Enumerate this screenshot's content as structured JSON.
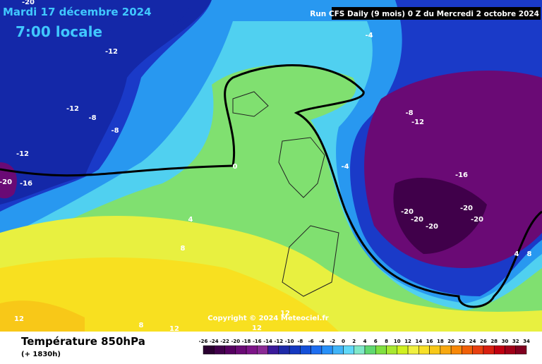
{
  "header": {
    "date": "Mardi 17 décembre 2024",
    "time": "7:00 locale",
    "run": "Run CFS Daily (9 mois) 0 Z du Mercredi 2 octobre 2024"
  },
  "map": {
    "contour_labels": [
      -20,
      -12,
      -12,
      -8,
      -8,
      -12,
      -20,
      -16,
      -4,
      -8,
      -12,
      0,
      -4,
      -16,
      -20,
      -20,
      -20,
      -20,
      -20,
      4,
      8,
      4,
      8,
      12,
      8,
      12,
      12,
      12
    ],
    "copyright": "Copyright © 2024 Meteociel.fr"
  },
  "footer": {
    "title": "Température 850hPa",
    "lead": "(+ 1830h)"
  },
  "scale": {
    "ticks": [
      -26,
      -24,
      -22,
      -20,
      -18,
      -16,
      -14,
      -12,
      -10,
      -8,
      -6,
      -4,
      -2,
      0,
      2,
      4,
      6,
      8,
      10,
      12,
      14,
      16,
      18,
      20,
      22,
      24,
      26,
      28,
      30,
      32,
      34
    ],
    "colors": [
      "#2a0030",
      "#40004a",
      "#550060",
      "#6a0a75",
      "#7d1488",
      "#8a2a95",
      "#3a1a9a",
      "#1e2aa8",
      "#1438c0",
      "#1450d8",
      "#1e6ef0",
      "#2890f8",
      "#40b4f8",
      "#60d8f8",
      "#80e8c8",
      "#60d870",
      "#80e040",
      "#a8e830",
      "#d0f020",
      "#f0f040",
      "#f8e028",
      "#f8c818",
      "#f8a810",
      "#f88808",
      "#f06008",
      "#e84010",
      "#d82010",
      "#c00010",
      "#a00018",
      "#800020"
    ]
  }
}
